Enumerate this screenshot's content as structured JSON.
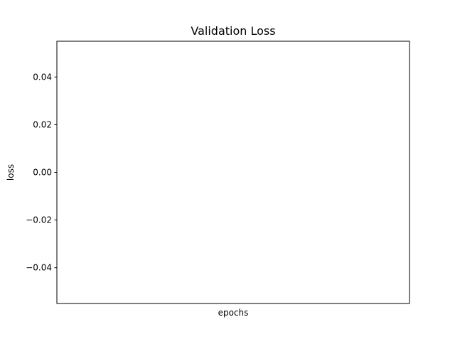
{
  "chart_data": {
    "type": "line",
    "title": "Validation Loss",
    "xlabel": "epochs",
    "ylabel": "loss",
    "series": [],
    "ylim": [
      -0.055,
      0.055
    ],
    "yticks": [
      -0.04,
      -0.02,
      0.0,
      0.02,
      0.04
    ],
    "ytick_labels": [
      "−0.04",
      "−0.02",
      "0.00",
      "0.02",
      "0.04"
    ],
    "xticks": [],
    "grid": false,
    "legend": "none"
  }
}
